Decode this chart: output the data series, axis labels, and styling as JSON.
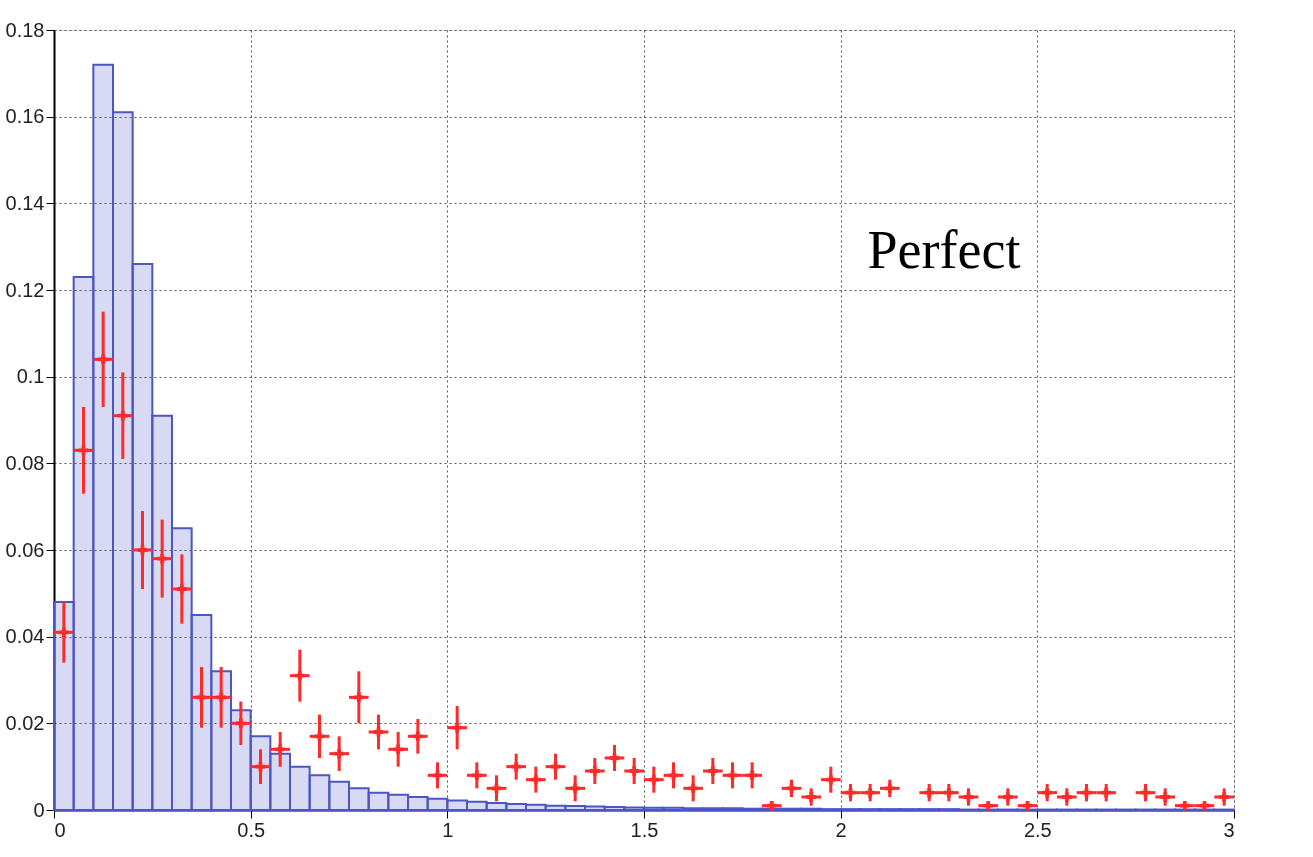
{
  "chart_data": {
    "type": "histogram",
    "bins": [
      0,
      0.05,
      0.1,
      0.15,
      0.2,
      0.25,
      0.3,
      0.35,
      0.4,
      0.45,
      0.5,
      0.55,
      0.6,
      0.65,
      0.7,
      0.75,
      0.8,
      0.85,
      0.9,
      0.95,
      1,
      1.05,
      1.1,
      1.15,
      1.2,
      1.25,
      1.3,
      1.35,
      1.4,
      1.45,
      1.5,
      1.55,
      1.6,
      1.65,
      1.7,
      1.75,
      1.8,
      1.85,
      1.9,
      1.95,
      2,
      2.05,
      2.1,
      2.15,
      2.2,
      2.25,
      2.3,
      2.35,
      2.4,
      2.45,
      2.5,
      2.55,
      2.6,
      2.65,
      2.7,
      2.75,
      2.8,
      2.85,
      2.9,
      2.95,
      3
    ],
    "series": [
      {
        "color": "#4b55c4",
        "values": [
          0.048,
          0.123,
          0.172,
          0.161,
          0.126,
          0.091,
          0.065,
          0.045,
          0.032,
          0.023,
          0.017,
          0.013,
          0.01,
          0.008,
          0.0065,
          0.005,
          0.004,
          0.0035,
          0.003,
          0.0026,
          0.0022,
          0.0019,
          0.0016,
          0.0014,
          0.0012,
          0.001,
          0.0009,
          0.0008,
          0.0007,
          0.0006,
          0.0005,
          0.0005,
          0.0004,
          0.0004,
          0.0004,
          0.0003,
          0.0003,
          0.0003,
          0.0003,
          0.0002,
          0.0002,
          0.0002,
          0.0002,
          0.0002,
          0.0002,
          0.0002,
          0.0001,
          0.0001,
          0.0001,
          0.0001,
          0.0001,
          0.0001,
          0.0001,
          0.0001,
          0.0001,
          0.0001,
          0.0001,
          0.0001,
          0.0001,
          0.0001
        ]
      },
      {
        "type": "scatter",
        "color": "#ff2a2a",
        "marker": "cross",
        "x": [
          0.025,
          0.075,
          0.125,
          0.175,
          0.225,
          0.275,
          0.325,
          0.375,
          0.425,
          0.475,
          0.525,
          0.575,
          0.625,
          0.675,
          0.725,
          0.775,
          0.825,
          0.875,
          0.925,
          0.975,
          1.025,
          1.075,
          1.125,
          1.175,
          1.225,
          1.275,
          1.325,
          1.375,
          1.425,
          1.475,
          1.525,
          1.575,
          1.625,
          1.675,
          1.725,
          1.775,
          1.825,
          1.875,
          1.925,
          1.975,
          2.025,
          2.075,
          2.125,
          2.175,
          2.225,
          2.275,
          2.325,
          2.375,
          2.425,
          2.475,
          2.525,
          2.575,
          2.625,
          2.675,
          2.725,
          2.775,
          2.825,
          2.875,
          2.925,
          2.975
        ],
        "values": [
          0.041,
          0.083,
          0.104,
          0.091,
          0.06,
          0.058,
          0.051,
          0.026,
          0.026,
          0.02,
          0.01,
          0.014,
          0.031,
          0.017,
          0.013,
          0.026,
          0.018,
          0.014,
          0.017,
          0.008,
          0.019,
          0.008,
          0.005,
          0.01,
          0.007,
          0.01,
          0.005,
          0.009,
          0.012,
          0.009,
          0.007,
          0.008,
          0.005,
          0.009,
          0.008,
          0.008,
          0.001,
          0.005,
          0.003,
          0.007,
          0.004,
          0.004,
          0.005,
          null,
          0.004,
          0.004,
          0.003,
          0.001,
          0.003,
          0.001,
          0.004,
          0.003,
          0.004,
          0.004,
          null,
          0.004,
          0.003,
          0.001,
          0.001,
          0.003
        ],
        "errors": [
          0.007,
          0.01,
          0.011,
          0.01,
          0.009,
          0.009,
          0.008,
          0.007,
          0.007,
          0.005,
          0.004,
          0.004,
          0.006,
          0.005,
          0.004,
          0.006,
          0.004,
          0.004,
          0.004,
          0.003,
          0.005,
          0.003,
          0.003,
          0.003,
          0.003,
          0.003,
          0.003,
          0.003,
          0.003,
          0.003,
          0.003,
          0.003,
          0.003,
          0.003,
          0.003,
          0.003,
          null,
          0.002,
          0.002,
          0.003,
          0.002,
          0.002,
          0.002,
          null,
          0.002,
          0.002,
          0.002,
          null,
          0.002,
          null,
          0.002,
          0.002,
          0.002,
          0.002,
          null,
          0.002,
          0.002,
          null,
          null,
          0.002
        ],
        "xerrors": [
          0.025,
          0.025,
          0.025,
          0.025,
          0.025,
          0.025,
          0.025,
          0.025,
          0.025,
          0.025,
          0.025,
          0.025,
          0.025,
          0.025,
          0.025,
          0.025,
          0.025,
          0.025,
          0.025,
          0.025,
          0.025,
          0.025,
          0.025,
          0.025,
          0.025,
          0.025,
          0.025,
          0.025,
          0.025,
          0.025,
          0.025,
          0.025,
          0.025,
          0.025,
          0.025,
          0.025,
          0.025,
          0.025,
          0.025,
          0.025,
          0.025,
          0.025,
          0.025,
          null,
          0.025,
          0.025,
          0.025,
          0.025,
          0.025,
          0.025,
          0.025,
          0.025,
          0.025,
          0.025,
          null,
          0.025,
          0.025,
          0.025,
          0.025,
          0.025
        ]
      }
    ],
    "xlim": [
      0,
      3
    ],
    "ylim": [
      0,
      0.18
    ],
    "xticks": [
      0,
      0.5,
      1,
      1.5,
      2,
      2.5,
      3
    ],
    "yticks": [
      0,
      0.02,
      0.04,
      0.06,
      0.08,
      0.1,
      0.12,
      0.14,
      0.16,
      0.18
    ],
    "grid": true,
    "annotations": [
      "Perfect"
    ]
  }
}
